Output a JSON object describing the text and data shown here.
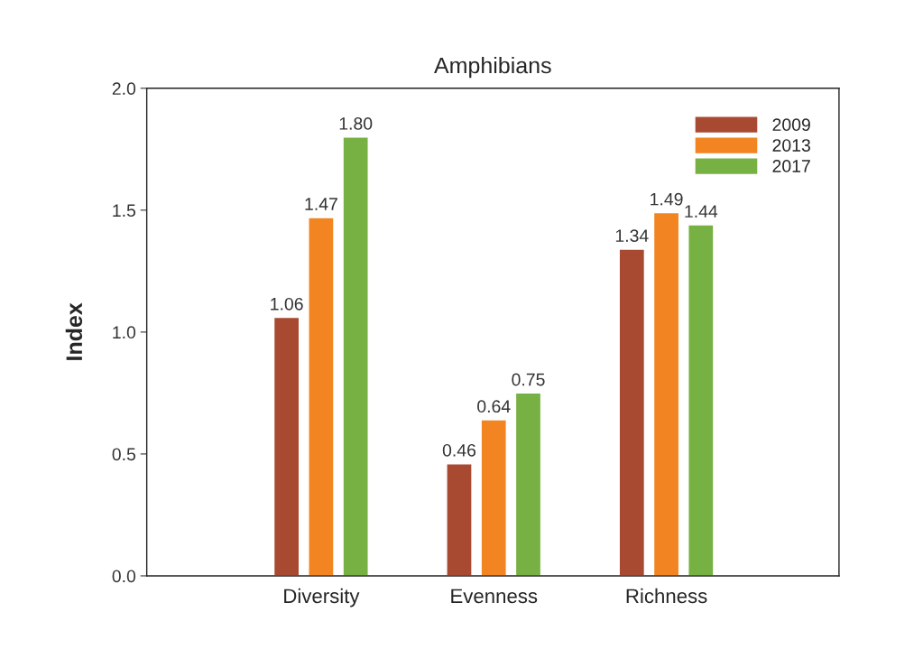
{
  "chart_data": {
    "type": "bar",
    "title": "Amphibians",
    "ylabel": "Index",
    "categories": [
      "Diversity",
      "Evenness",
      "Richness"
    ],
    "series": [
      {
        "name": "2009",
        "color": "#a84a32",
        "values": [
          1.06,
          0.46,
          1.34
        ],
        "value_labels": [
          "1.06",
          "0.46",
          "1.34"
        ]
      },
      {
        "name": "2013",
        "color": "#f28522",
        "values": [
          1.47,
          0.64,
          1.49
        ],
        "value_labels": [
          "1.47",
          "0.64",
          "1.49"
        ]
      },
      {
        "name": "2017",
        "color": "#77b043",
        "values": [
          1.8,
          0.75,
          1.44
        ],
        "value_labels": [
          "1.80",
          "0.75",
          "1.44"
        ]
      }
    ],
    "ylim": [
      0,
      2
    ],
    "yticks": [
      {
        "value": 0,
        "label": "0.0"
      },
      {
        "value": 0.5,
        "label": "0.5"
      },
      {
        "value": 1,
        "label": "1.0"
      },
      {
        "value": 1.5,
        "label": "1.5"
      },
      {
        "value": 2,
        "label": "2.0"
      }
    ],
    "grid": false,
    "legend": "top right"
  }
}
